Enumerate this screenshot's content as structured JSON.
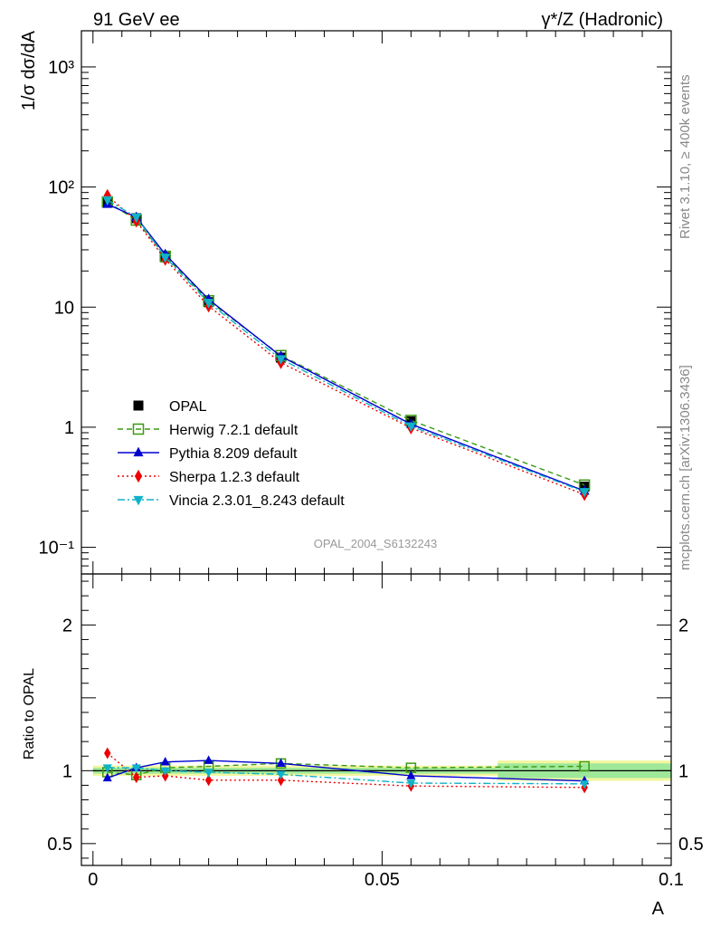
{
  "header": {
    "left": "91 GeV ee",
    "right": "γ*/Z (Hadronic)"
  },
  "side_text": {
    "rivet": "Rivet 3.1.10, ≥ 400k events",
    "mcplots": "mcplots.cern.ch [arXiv:1306.3436]"
  },
  "chart_data": [
    {
      "type": "line",
      "ylabel": "1/σ dσ/dA",
      "yscale": "log",
      "ylim": [
        0.06,
        2000
      ],
      "xlim": [
        -0.002,
        0.1
      ],
      "annotation": "OPAL_2004_S6132243",
      "y_ticks": [
        {
          "value": 1000,
          "label": "10³"
        },
        {
          "value": 100,
          "label": "10²"
        },
        {
          "value": 10,
          "label": "10"
        },
        {
          "value": 1,
          "label": "1"
        },
        {
          "value": 0.1,
          "label": "10⁻¹"
        }
      ],
      "legend_position": "lower-left",
      "x": [
        0.0025,
        0.0075,
        0.0125,
        0.02,
        0.0325,
        0.055,
        0.085
      ],
      "series": [
        {
          "name": "OPAL",
          "color": "#000000",
          "marker": "square-filled",
          "line": "none",
          "values": [
            76,
            55,
            26,
            11,
            3.8,
            1.12,
            0.32
          ]
        },
        {
          "name": "Herwig 7.2.1 default",
          "color": "#3a9a12",
          "marker": "square-open",
          "line": "dashed",
          "values": [
            75,
            53,
            26.5,
            11.3,
            3.95,
            1.14,
            0.33
          ]
        },
        {
          "name": "Pythia 8.209 default",
          "color": "#0000d0",
          "marker": "triangle-up",
          "line": "solid",
          "values": [
            72,
            56,
            27.5,
            11.6,
            3.9,
            1.06,
            0.295
          ]
        },
        {
          "name": "Sherpa 1.2.3 default",
          "color": "#ee0000",
          "marker": "diamond",
          "line": "dotted",
          "values": [
            85,
            52,
            25,
            10.2,
            3.45,
            0.985,
            0.275
          ]
        },
        {
          "name": "Vincia 2.3.01_8.243 default",
          "color": "#10b2c8",
          "marker": "triangle-down",
          "line": "dashdot",
          "values": [
            78,
            56,
            26,
            10.9,
            3.7,
            1.02,
            0.29
          ]
        }
      ]
    },
    {
      "type": "line",
      "ylabel": "Ratio to OPAL",
      "xlabel": "A",
      "ylim": [
        0.35,
        2.35
      ],
      "xlim": [
        -0.002,
        0.1
      ],
      "y_ticks": [
        {
          "value": 0.5,
          "label": "0.5"
        },
        {
          "value": 1,
          "label": "1"
        },
        {
          "value": 2,
          "label": "2"
        }
      ],
      "x_ticks": [
        {
          "value": 0,
          "label": "0"
        },
        {
          "value": 0.05,
          "label": "0.05"
        },
        {
          "value": 0.1,
          "label": "0.1"
        }
      ],
      "bands": [
        {
          "x_from": 0.0,
          "x_to": 0.07,
          "green_half": 0.02,
          "yellow_half": 0.035
        },
        {
          "x_from": 0.07,
          "x_to": 0.1,
          "green_half": 0.05,
          "yellow_half": 0.07
        }
      ],
      "x": [
        0.0025,
        0.0075,
        0.0125,
        0.02,
        0.0325,
        0.055,
        0.085
      ],
      "series": [
        {
          "name": "Herwig 7.2.1 default",
          "color": "#3a9a12",
          "marker": "square-open",
          "line": "dashed",
          "values": [
            0.99,
            0.97,
            1.02,
            1.03,
            1.05,
            1.02,
            1.03
          ]
        },
        {
          "name": "Pythia 8.209 default",
          "color": "#0000d0",
          "marker": "triangle-up",
          "line": "solid",
          "values": [
            0.95,
            1.02,
            1.06,
            1.07,
            1.05,
            0.965,
            0.93
          ]
        },
        {
          "name": "Sherpa 1.2.3 default",
          "color": "#ee0000",
          "marker": "diamond",
          "line": "dotted",
          "values": [
            1.12,
            0.955,
            0.965,
            0.935,
            0.935,
            0.895,
            0.885
          ]
        },
        {
          "name": "Vincia 2.3.01_8.243 default",
          "color": "#10b2c8",
          "marker": "triangle-down",
          "line": "dashdot",
          "values": [
            1.02,
            1.02,
            1.0,
            0.99,
            0.975,
            0.915,
            0.91
          ]
        }
      ]
    }
  ]
}
